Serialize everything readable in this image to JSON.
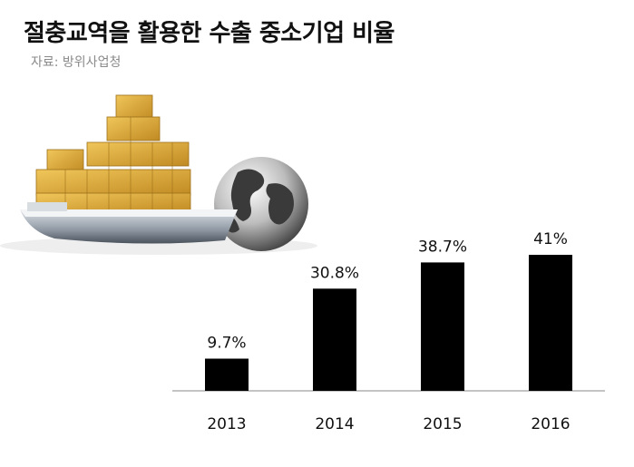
{
  "header": {
    "title": "절충교역을 활용한 수출 중소기업 비율",
    "source": "자료: 방위사업청"
  },
  "illustration": {
    "icon": "cargo-ship-and-globe-icon"
  },
  "colors": {
    "bar": "#000000",
    "axis": "#888888",
    "text": "#111111",
    "box": "#d8a838"
  },
  "chart_data": {
    "type": "bar",
    "title": "",
    "xlabel": "",
    "ylabel": "",
    "categories": [
      "2013",
      "2014",
      "2015",
      "2016"
    ],
    "values": [
      9.7,
      30.8,
      38.7,
      41
    ],
    "labels": [
      "9.7%",
      "30.8%",
      "38.7%",
      "41%"
    ],
    "unit": "%",
    "ylim": [
      0,
      41
    ],
    "grid": false,
    "legend": "none"
  }
}
